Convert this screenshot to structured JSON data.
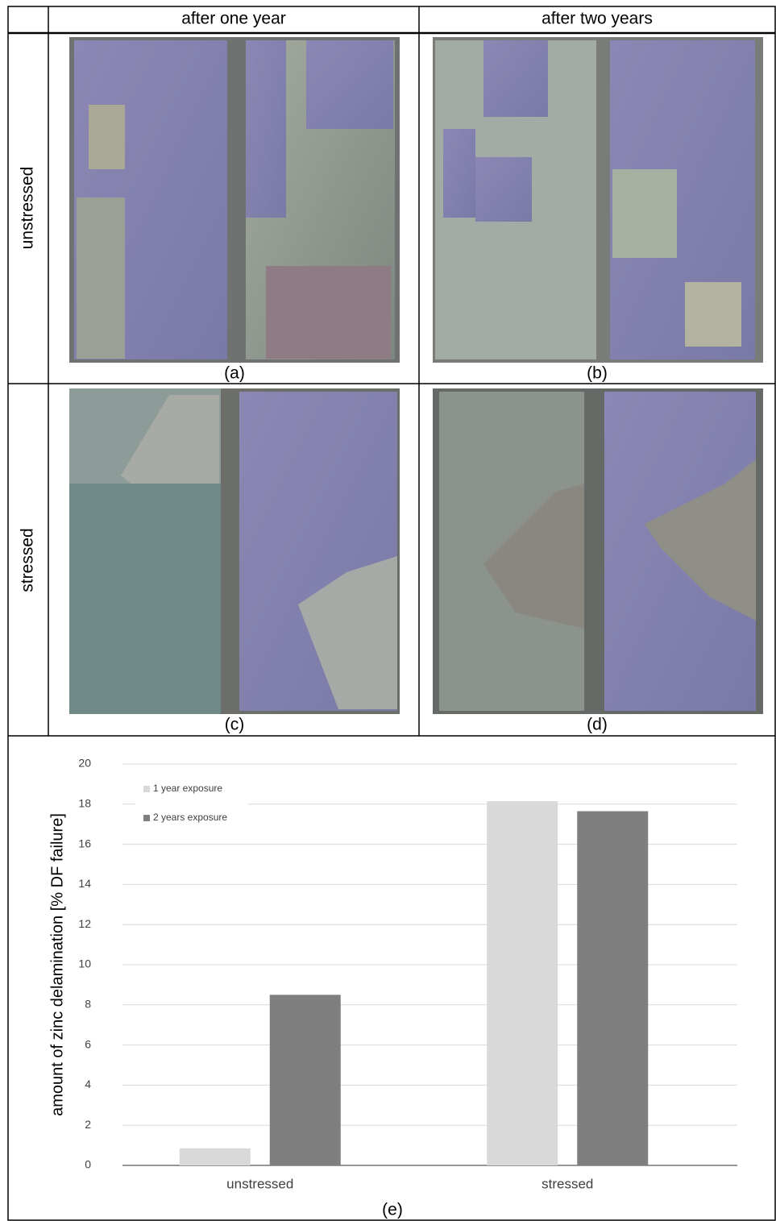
{
  "table": {
    "headers": [
      "after one year",
      "after two years"
    ],
    "rows": [
      "unstressed",
      "stressed"
    ],
    "captions": [
      "(a)",
      "(b)",
      "(c)",
      "(d)"
    ]
  },
  "chart_data": {
    "type": "bar",
    "caption": "(e)",
    "y_label": "amount of zinc delamination [% DF failure]",
    "categories": [
      "unstressed",
      "stressed"
    ],
    "series": [
      {
        "name": "1 year exposure",
        "color": "#d9d9d9",
        "values": [
          0.85,
          18.15
        ]
      },
      {
        "name": "2 years exposure",
        "color": "#7f7f7f",
        "values": [
          8.5,
          17.65
        ]
      }
    ],
    "ylim": [
      0,
      20
    ],
    "yticks": [
      0,
      2,
      4,
      6,
      8,
      10,
      12,
      14,
      16,
      18,
      20
    ],
    "grid": true,
    "legend": "upper-left"
  }
}
